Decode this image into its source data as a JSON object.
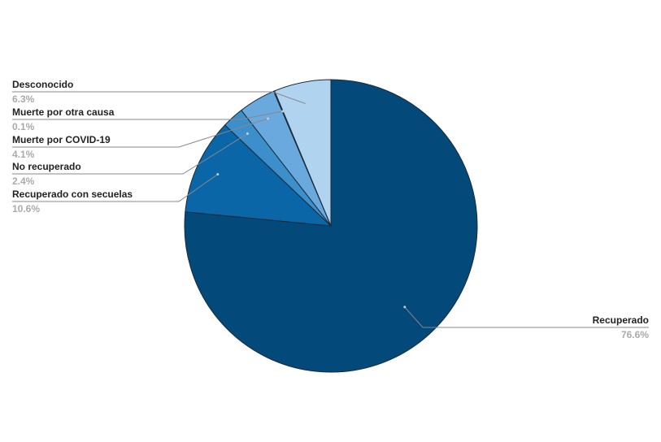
{
  "chart_data": {
    "type": "pie",
    "categories": [
      "Recuperado",
      "Recuperado con secuelas",
      "No recuperado",
      "Muerte por COVID-19",
      "Muerte por otra causa",
      "Desconocido"
    ],
    "values": [
      76.6,
      10.6,
      2.4,
      4.1,
      0.1,
      6.3
    ],
    "value_labels": [
      "76.6%",
      "10.6%",
      "2.4%",
      "4.1%",
      "0.1%",
      "6.3%"
    ],
    "colors": [
      "#03497a",
      "#0b66a8",
      "#3d8fcc",
      "#6aa9dd",
      "#4f86ba",
      "#b0d3ef"
    ]
  }
}
